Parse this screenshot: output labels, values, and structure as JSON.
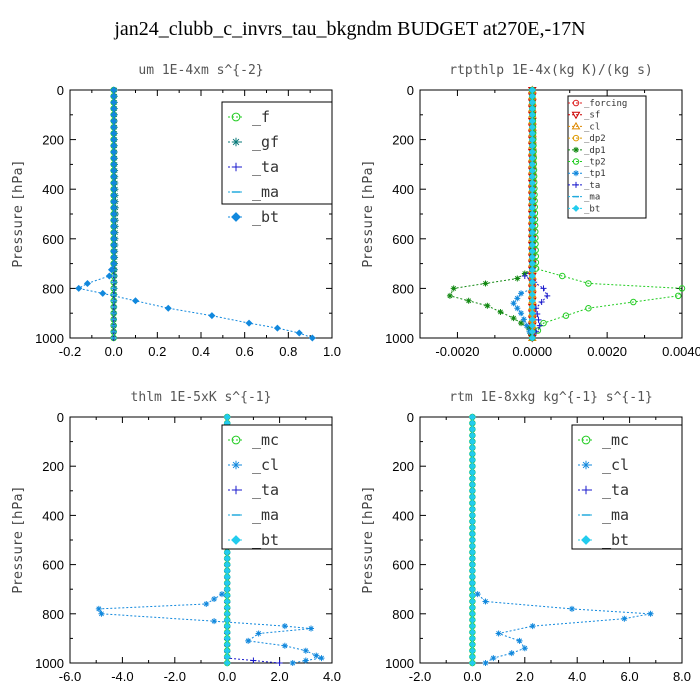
{
  "page": {
    "title": "jan24_clubb_c_invrs_tau_bkgndm  BUDGET at270E,-17N"
  },
  "chart_data": [
    {
      "type": "line",
      "title": "um  1E-4xm s^{-2}",
      "ylabel": "Pressure [hPa]",
      "xlim": [
        -0.2,
        1.0
      ],
      "ylim": [
        1000,
        0
      ],
      "xticks": [
        "-0.2",
        "0.0",
        "0.2",
        "0.4",
        "0.6",
        "0.8",
        "1.0"
      ],
      "yticks": [
        "0",
        "200",
        "400",
        "600",
        "800",
        "1000"
      ],
      "legend_font": 15,
      "series": [
        {
          "name": "_f",
          "color": "#22cc22",
          "marker": "circle",
          "x": [
            0,
            0,
            0,
            0,
            0
          ],
          "y": [
            0,
            250,
            500,
            750,
            1000
          ]
        },
        {
          "name": "_gf",
          "color": "#0a7a7a",
          "marker": "star",
          "x": [
            0.005,
            0.005,
            0.01,
            0.005,
            0
          ],
          "y": [
            0,
            250,
            500,
            750,
            1000
          ]
        },
        {
          "name": "_ta",
          "color": "#1a1acc",
          "marker": "plus",
          "x": [
            0,
            0,
            0,
            0
          ],
          "y": [
            0,
            500,
            950,
            1000
          ]
        },
        {
          "name": "_ma",
          "color": "#22aadd",
          "marker": "dash",
          "x": [
            0,
            0
          ],
          "y": [
            0,
            1000
          ]
        },
        {
          "name": "_bt",
          "color": "#1188dd",
          "marker": "diamond",
          "x": [
            0,
            0,
            -0.02,
            -0.12,
            -0.16,
            -0.05,
            0.1,
            0.25,
            0.45,
            0.62,
            0.75,
            0.85,
            0.91
          ],
          "y": [
            0,
            700,
            750,
            780,
            800,
            820,
            850,
            880,
            910,
            940,
            960,
            980,
            1000
          ]
        }
      ]
    },
    {
      "type": "line",
      "title": "rtpthlp  1E-4x(kg K)/(kg s)",
      "ylabel": "Pressure [hPa]",
      "xlim": [
        -0.003,
        0.004
      ],
      "ylim": [
        1000,
        0
      ],
      "xticks": [
        "-0.0020",
        "0.0000",
        "0.0020",
        "0.0040"
      ],
      "xtick_values": [
        -0.002,
        0.0,
        0.002,
        0.004
      ],
      "yticks": [
        "0",
        "200",
        "400",
        "600",
        "800",
        "1000"
      ],
      "legend_font": 9,
      "series": [
        {
          "name": "_forcing",
          "color": "#dd2222",
          "marker": "circle",
          "x": [
            0,
            0
          ],
          "y": [
            0,
            1000
          ]
        },
        {
          "name": "_sf",
          "color": "#cc0000",
          "marker": "triangle-down",
          "x": [
            0,
            0
          ],
          "y": [
            0,
            1000
          ]
        },
        {
          "name": "_cl",
          "color": "#dd8800",
          "marker": "triangle",
          "x": [
            0,
            0
          ],
          "y": [
            0,
            1000
          ]
        },
        {
          "name": "_dp2",
          "color": "#dd9900",
          "marker": "circle",
          "x": [
            0,
            0
          ],
          "y": [
            0,
            1000
          ]
        },
        {
          "name": "_dp1",
          "color": "#118811",
          "marker": "star",
          "x": [
            0,
            0,
            -0.0004,
            -0.0021,
            -0.0022,
            -0.0012,
            -0.0005,
            -0.0001,
            0
          ],
          "y": [
            0,
            720,
            760,
            800,
            830,
            870,
            920,
            960,
            1000
          ]
        },
        {
          "name": "_tp2",
          "color": "#22cc22",
          "marker": "circle",
          "x": [
            0,
            0.0001,
            0.0015,
            0.004,
            0.0039,
            0.0015,
            0.0003,
            0
          ],
          "y": [
            0,
            720,
            780,
            800,
            830,
            880,
            940,
            1000
          ]
        },
        {
          "name": "_tp1",
          "color": "#1188dd",
          "marker": "star",
          "x": [
            0,
            0,
            -0.0003,
            -0.0005,
            -0.0003,
            0
          ],
          "y": [
            0,
            800,
            820,
            860,
            900,
            1000
          ]
        },
        {
          "name": "_ta",
          "color": "#1a1acc",
          "marker": "plus",
          "x": [
            0,
            0,
            -0.0002,
            0.0003,
            0.0004,
            0.0001,
            0.0002,
            0
          ],
          "y": [
            0,
            720,
            750,
            800,
            830,
            880,
            950,
            1000
          ]
        },
        {
          "name": "_ma",
          "color": "#22aadd",
          "marker": "dash",
          "x": [
            0,
            0
          ],
          "y": [
            0,
            1000
          ]
        },
        {
          "name": "_bt",
          "color": "#22ccee",
          "marker": "diamond",
          "x": [
            0,
            0
          ],
          "y": [
            0,
            1000
          ]
        }
      ]
    },
    {
      "type": "line",
      "title": "thlm  1E-5xK s^{-1}",
      "ylabel": "Pressure [hPa]",
      "xlim": [
        -6.0,
        4.0
      ],
      "ylim": [
        1000,
        0
      ],
      "xticks": [
        "-6.0",
        "-4.0",
        "-2.0",
        "0.0",
        "2.0",
        "4.0"
      ],
      "yticks": [
        "0",
        "200",
        "400",
        "600",
        "800",
        "1000"
      ],
      "legend_font": 15,
      "series": [
        {
          "name": "_mc",
          "color": "#22cc22",
          "marker": "circle",
          "x": [
            0,
            0
          ],
          "y": [
            0,
            1000
          ]
        },
        {
          "name": "_cl",
          "color": "#1188dd",
          "marker": "star",
          "x": [
            0,
            0,
            -0.2,
            -0.8,
            -4.9,
            -4.8,
            -0.5,
            2.2,
            3.2,
            1.2,
            0.8,
            2.2,
            3.0,
            3.4,
            3.6,
            3.0,
            2.5
          ],
          "y": [
            0,
            700,
            720,
            760,
            780,
            800,
            830,
            850,
            860,
            880,
            910,
            930,
            950,
            970,
            980,
            990,
            1000
          ]
        },
        {
          "name": "_ta",
          "color": "#1a1acc",
          "marker": "plus",
          "x": [
            0,
            0,
            1.0,
            2.0
          ],
          "y": [
            0,
            980,
            990,
            1000
          ]
        },
        {
          "name": "_ma",
          "color": "#22aadd",
          "marker": "dash",
          "x": [
            0,
            0
          ],
          "y": [
            0,
            1000
          ]
        },
        {
          "name": "_bt",
          "color": "#22ccee",
          "marker": "diamond",
          "x": [
            0,
            0
          ],
          "y": [
            0,
            1000
          ]
        }
      ]
    },
    {
      "type": "line",
      "title": "rtm  1E-8xkg kg^{-1} s^{-1}",
      "ylabel": "Pressure [hPa]",
      "xlim": [
        -2.0,
        8.0
      ],
      "ylim": [
        1000,
        0
      ],
      "xticks": [
        "-2.0",
        "0.0",
        "2.0",
        "4.0",
        "6.0",
        "8.0"
      ],
      "yticks": [
        "0",
        "200",
        "400",
        "600",
        "800",
        "1000"
      ],
      "legend_font": 15,
      "series": [
        {
          "name": "_mc",
          "color": "#22cc22",
          "marker": "circle",
          "x": [
            0,
            0
          ],
          "y": [
            0,
            1000
          ]
        },
        {
          "name": "_cl",
          "color": "#1188dd",
          "marker": "star",
          "x": [
            0,
            0,
            0.2,
            0.5,
            3.8,
            6.8,
            5.8,
            2.3,
            1.0,
            1.8,
            2.0,
            1.5,
            0.8,
            0.5
          ],
          "y": [
            0,
            700,
            720,
            750,
            780,
            800,
            820,
            850,
            880,
            910,
            940,
            960,
            980,
            1000
          ]
        },
        {
          "name": "_ta",
          "color": "#1a1acc",
          "marker": "plus",
          "x": [
            0,
            0
          ],
          "y": [
            0,
            1000
          ]
        },
        {
          "name": "_ma",
          "color": "#22aadd",
          "marker": "dash",
          "x": [
            0,
            0
          ],
          "y": [
            0,
            1000
          ]
        },
        {
          "name": "_bt",
          "color": "#22ccee",
          "marker": "diamond",
          "x": [
            0,
            0
          ],
          "y": [
            0,
            1000
          ]
        }
      ]
    }
  ]
}
